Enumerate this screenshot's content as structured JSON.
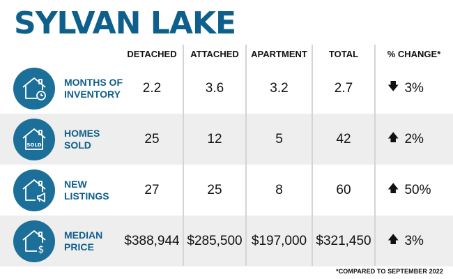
{
  "title": "SYLVAN LAKE",
  "columns": {
    "detached": "DETACHED",
    "attached": "ATTACHED",
    "apartment": "APARTMENT",
    "total": "TOTAL",
    "change": "% CHANGE*"
  },
  "rows": [
    {
      "icon": "house-clock-icon",
      "label_line1": "MONTHS OF",
      "label_line2": "INVENTORY",
      "detached": "2.2",
      "attached": "3.6",
      "apartment": "3.2",
      "total": "2.7",
      "direction": "down",
      "arrow": "🡇",
      "change": "3%"
    },
    {
      "icon": "house-sold-icon",
      "icon_text": "SOLD",
      "label_line1": "HOMES",
      "label_line2": "SOLD",
      "detached": "25",
      "attached": "12",
      "apartment": "5",
      "total": "42",
      "direction": "up",
      "arrow": "🡅",
      "change": "2%"
    },
    {
      "icon": "house-megaphone-icon",
      "label_line1": "NEW",
      "label_line2": "LISTINGS",
      "detached": "27",
      "attached": "25",
      "apartment": "8",
      "total": "60",
      "direction": "up",
      "arrow": "🡅",
      "change": "50%"
    },
    {
      "icon": "house-dollar-icon",
      "label_line1": "MEDIAN",
      "label_line2": "PRICE",
      "detached": "$388,944",
      "attached": "$285,500",
      "apartment": "$197,000",
      "total": "$321,450",
      "direction": "up",
      "arrow": "🡅",
      "change": "3%"
    }
  ],
  "footnote": "*COMPARED TO SEPTEMBER 2022",
  "colors": {
    "title": "#0e5f8c",
    "icon_bg": "#1c6f98",
    "shade": "#eeeeee"
  }
}
